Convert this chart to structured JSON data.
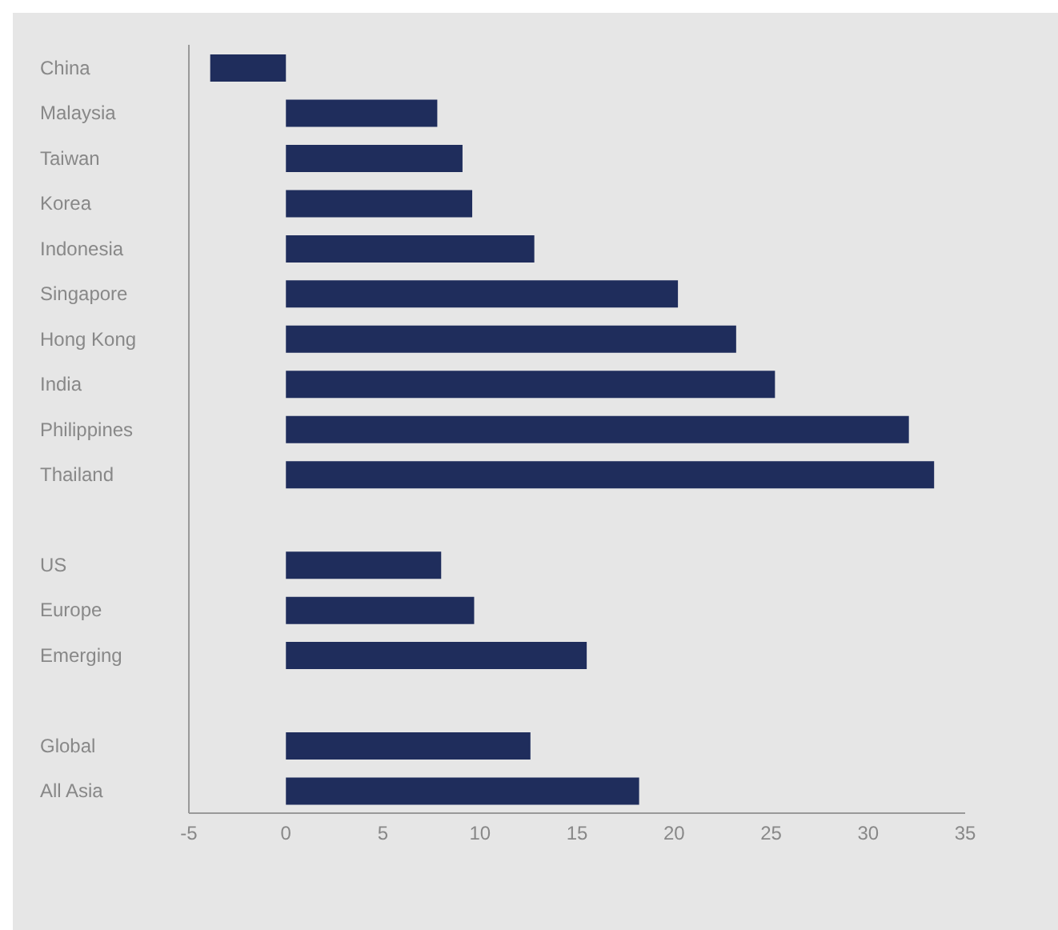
{
  "chart_data": {
    "type": "bar",
    "orientation": "horizontal",
    "categories": [
      "China",
      "Malaysia",
      "Taiwan",
      "Korea",
      "Indonesia",
      "Singapore",
      "Hong Kong",
      "India",
      "Philippines",
      "Thailand",
      null,
      "US",
      "Europe",
      "Emerging",
      null,
      "Global",
      "All Asia"
    ],
    "values": [
      -3.9,
      7.8,
      9.1,
      9.6,
      12.8,
      20.2,
      23.2,
      25.2,
      32.1,
      33.4,
      null,
      8.0,
      9.7,
      15.5,
      null,
      12.6,
      18.2
    ],
    "color": "#1f2d5c",
    "xlim": [
      -5,
      35
    ],
    "xticks": [
      -5,
      0,
      5,
      10,
      15,
      20,
      25,
      30,
      35
    ],
    "grid": false
  }
}
